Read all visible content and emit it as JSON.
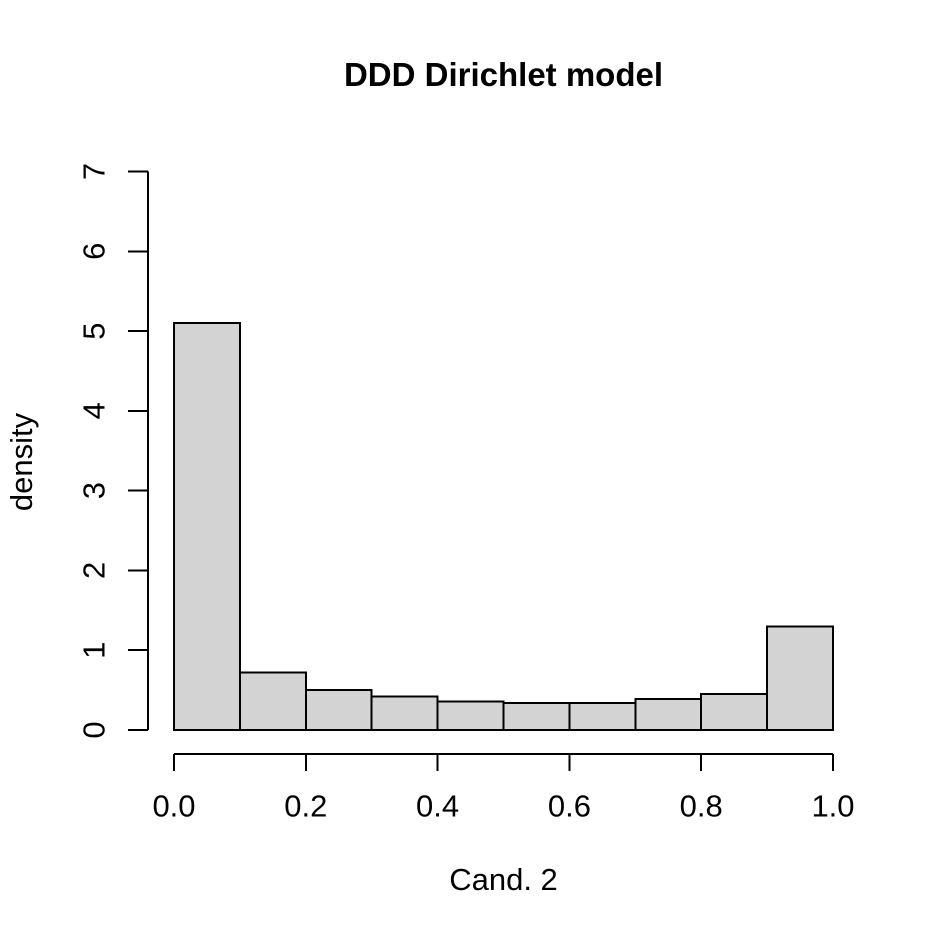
{
  "title": "DDD Dirichlet model",
  "chart_data": {
    "type": "bar",
    "subtype": "histogram",
    "title": "DDD Dirichlet model",
    "xlabel": "Cand. 2",
    "ylabel": "density",
    "bin_width": 0.1,
    "bin_edges": [
      0.0,
      0.1,
      0.2,
      0.3,
      0.4,
      0.5,
      0.6,
      0.7,
      0.8,
      0.9,
      1.0
    ],
    "densities": [
      5.1,
      0.72,
      0.5,
      0.42,
      0.36,
      0.34,
      0.34,
      0.39,
      0.45,
      1.3
    ],
    "xlim": [
      0.0,
      1.0
    ],
    "ylim": [
      0,
      7
    ],
    "x_tick_labels": [
      "0.0",
      "0.2",
      "0.4",
      "0.6",
      "0.8",
      "1.0"
    ],
    "y_tick_labels": [
      "0",
      "1",
      "2",
      "3",
      "4",
      "5",
      "6",
      "7"
    ],
    "grid": false,
    "legend": false,
    "colors": {
      "bar_fill": "#d3d3d3",
      "bar_stroke": "#000000",
      "axis": "#000000",
      "text": "#000000",
      "background": "#ffffff"
    }
  }
}
